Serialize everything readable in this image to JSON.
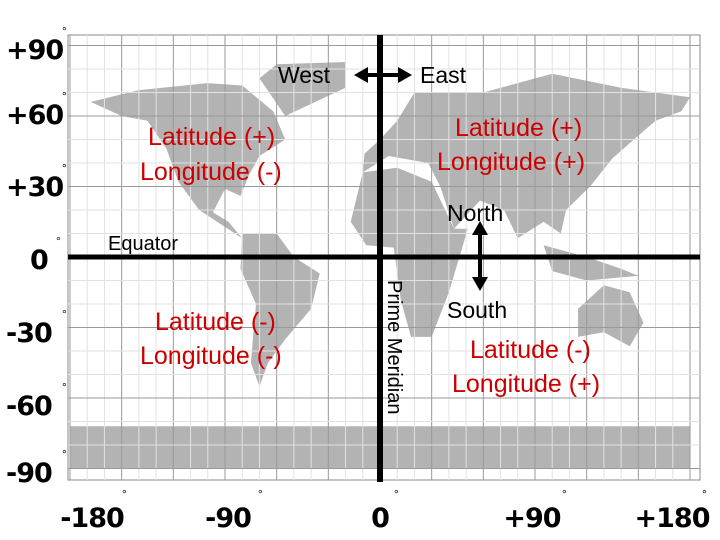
{
  "axes": {
    "unit": "°",
    "latitude": [
      "+90",
      "+60",
      "+30",
      "0",
      "-30",
      "-60",
      "-90"
    ],
    "longitude": [
      "-180",
      "-90",
      "0",
      "+90",
      "+180"
    ]
  },
  "labels": {
    "west": "West",
    "east": "East",
    "north": "North",
    "south": "South",
    "equator": "Equator",
    "prime_meridian": "Prime Meridian"
  },
  "quadrants": {
    "northwest": [
      "Latitude (+)",
      "Longitude (-)"
    ],
    "northeast": [
      "Latitude (+)",
      "Longitude (+)"
    ],
    "southwest": [
      "Latitude (-)",
      "Longitude (-)"
    ],
    "southeast": [
      "Latitude (-)",
      "Longitude (+)"
    ]
  }
}
